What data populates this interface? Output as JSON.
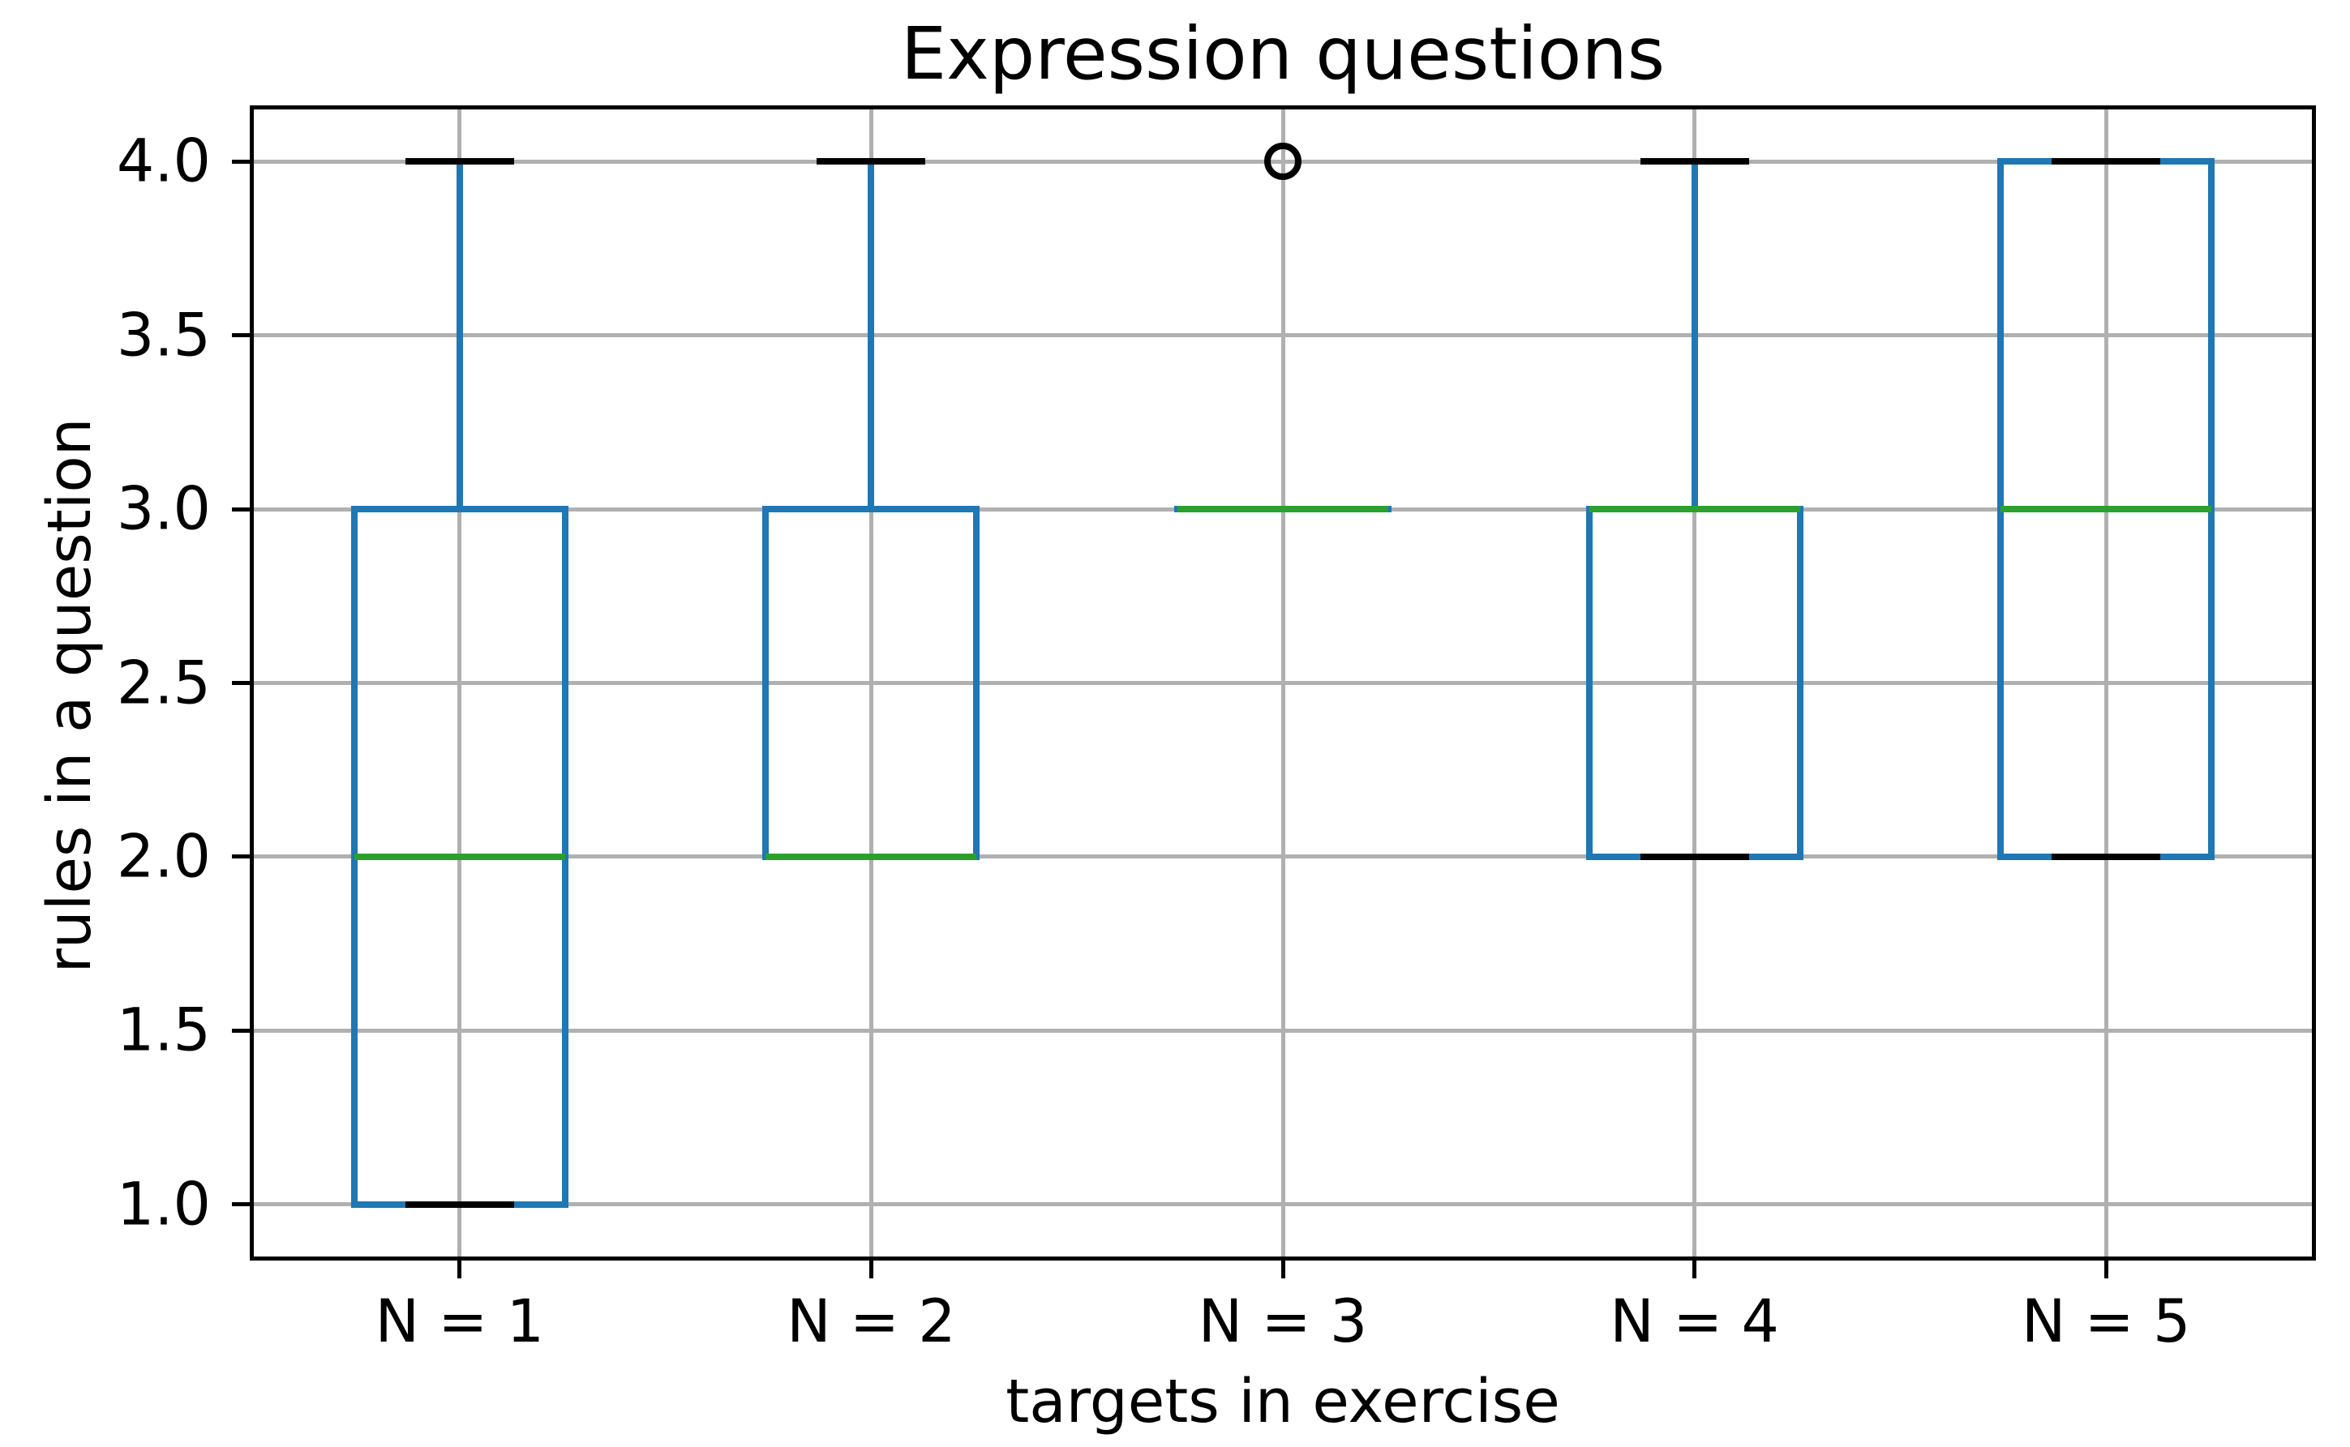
{
  "chart_data": {
    "type": "boxplot",
    "title": "Expression questions",
    "xlabel": "targets in exercise",
    "ylabel": "rules in a question",
    "categories": [
      "N = 1",
      "N = 2",
      "N = 3",
      "N = 4",
      "N = 5"
    ],
    "ytick_labels": [
      "4.0",
      "3.5",
      "3.0",
      "2.5",
      "2.0",
      "1.5",
      "1.0"
    ],
    "ytick_values": [
      4.0,
      3.5,
      3.0,
      2.5,
      2.0,
      1.5,
      1.0
    ],
    "xtick_positions": [
      1,
      2,
      3,
      4,
      5
    ],
    "xlim": [
      0.5,
      5.5
    ],
    "ylim": [
      0.85,
      4.15
    ],
    "grid": true,
    "legend": "none",
    "boxes": [
      {
        "label": "N = 1",
        "whislo": 1.0,
        "q1": 1.0,
        "med": 2.0,
        "q3": 3.0,
        "whishi": 4.0,
        "fliers": []
      },
      {
        "label": "N = 2",
        "whislo": 2.0,
        "q1": 2.0,
        "med": 2.0,
        "q3": 3.0,
        "whishi": 4.0,
        "fliers": []
      },
      {
        "label": "N = 3",
        "whislo": 3.0,
        "q1": 3.0,
        "med": 3.0,
        "q3": 3.0,
        "whishi": 3.0,
        "fliers": [
          4.0
        ]
      },
      {
        "label": "N = 4",
        "whislo": 2.0,
        "q1": 2.0,
        "med": 3.0,
        "q3": 3.0,
        "whishi": 4.0,
        "fliers": []
      },
      {
        "label": "N = 5",
        "whislo": 2.0,
        "q1": 2.0,
        "med": 3.0,
        "q3": 4.0,
        "whishi": 4.0,
        "fliers": []
      }
    ],
    "colors": {
      "box": "#1f77b4",
      "whisker": "#1f77b4",
      "median": "#2ca02c",
      "cap": "#000000",
      "flier_edge": "#000000",
      "grid": "#b0b0b0",
      "spine": "#000000",
      "background": "#ffffff",
      "text": "#000000"
    }
  }
}
